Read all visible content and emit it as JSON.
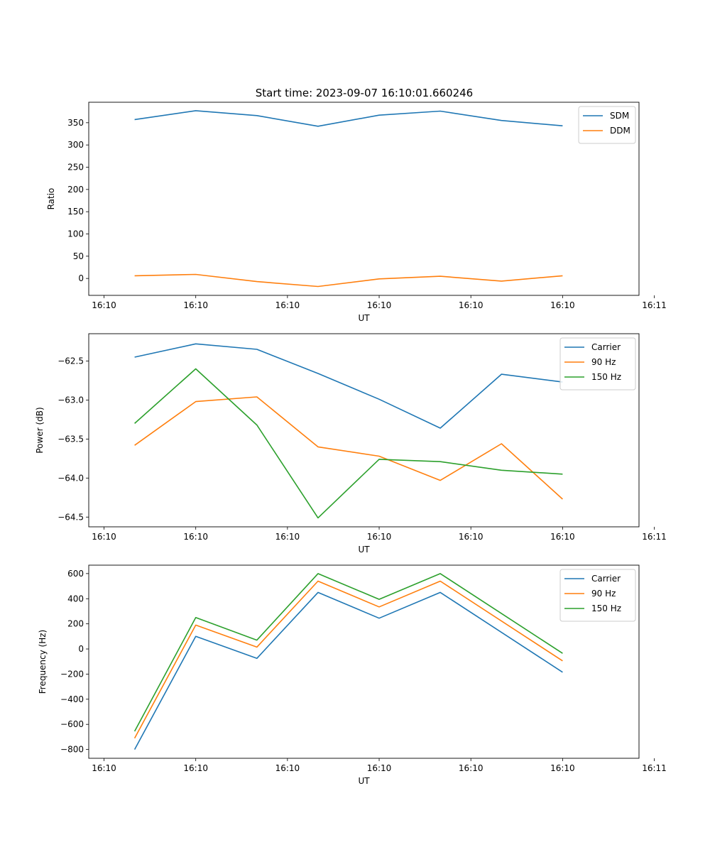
{
  "figure": {
    "title": "Start time: 2023-09-07 16:10:01.660246"
  },
  "colors": {
    "blue": "#1f77b4",
    "orange": "#ff7f0e",
    "green": "#2ca02c"
  },
  "chart_data": [
    {
      "type": "line",
      "title": "Start time: 2023-09-07 16:10:01.660246",
      "xlabel": "UT",
      "ylabel": "Ratio",
      "x": [
        1,
        2,
        3,
        4,
        5,
        6,
        7,
        8
      ],
      "xlim": [
        0.25,
        9.25
      ],
      "xticks": [
        0.5,
        2,
        3.5,
        5,
        6.5,
        8,
        9.5
      ],
      "xtick_labels": [
        "16:10",
        "16:10",
        "16:10",
        "16:10",
        "16:10",
        "16:10",
        "16:11"
      ],
      "ylim": [
        -38,
        396
      ],
      "yticks": [
        0,
        50,
        100,
        150,
        200,
        250,
        300,
        350
      ],
      "ytick_labels": [
        "0",
        "50",
        "100",
        "150",
        "200",
        "250",
        "300",
        "350"
      ],
      "legend_position": "top-right",
      "series": [
        {
          "name": "SDM",
          "color": "blue",
          "values": [
            357,
            377,
            366,
            342,
            367,
            376,
            355,
            343
          ]
        },
        {
          "name": "DDM",
          "color": "orange",
          "values": [
            6,
            9,
            -7,
            -18,
            -1,
            5,
            -6,
            6
          ]
        }
      ]
    },
    {
      "type": "line",
      "title": "",
      "xlabel": "UT",
      "ylabel": "Power (dB)",
      "x": [
        1,
        2,
        3,
        4,
        5,
        6,
        7,
        8
      ],
      "xlim": [
        0.25,
        9.25
      ],
      "xticks": [
        0.5,
        2,
        3.5,
        5,
        6.5,
        8,
        9.5
      ],
      "xtick_labels": [
        "16:10",
        "16:10",
        "16:10",
        "16:10",
        "16:10",
        "16:10",
        "16:11"
      ],
      "ylim": [
        -64.625,
        -62.15
      ],
      "yticks": [
        -62.5,
        -63.0,
        -63.5,
        -64.0,
        -64.5
      ],
      "ytick_labels": [
        "−62.5",
        "−63.0",
        "−63.5",
        "−64.0",
        "−64.5"
      ],
      "legend_position": "top-right",
      "series": [
        {
          "name": "Carrier",
          "color": "blue",
          "values": [
            -62.45,
            -62.28,
            -62.35,
            -62.66,
            -62.99,
            -63.36,
            -62.67,
            -62.77
          ]
        },
        {
          "name": "90 Hz",
          "color": "orange",
          "values": [
            -63.58,
            -63.02,
            -62.96,
            -63.6,
            -63.72,
            -64.03,
            -63.56,
            -64.27
          ]
        },
        {
          "name": "150 Hz",
          "color": "green",
          "values": [
            -63.3,
            -62.6,
            -63.32,
            -64.51,
            -63.76,
            -63.79,
            -63.9,
            -63.95
          ]
        }
      ]
    },
    {
      "type": "line",
      "title": "",
      "xlabel": "UT",
      "ylabel": "Frequency (Hz)",
      "x": [
        1,
        2,
        3,
        4,
        5,
        6,
        7,
        8
      ],
      "xlim": [
        0.25,
        9.25
      ],
      "xticks": [
        0.5,
        2,
        3.5,
        5,
        6.5,
        8,
        9.5
      ],
      "xtick_labels": [
        "16:10",
        "16:10",
        "16:10",
        "16:10",
        "16:10",
        "16:10",
        "16:11"
      ],
      "ylim": [
        -870,
        667
      ],
      "yticks": [
        -800,
        -600,
        -400,
        -200,
        0,
        200,
        400,
        600
      ],
      "ytick_labels": [
        "−800",
        "−600",
        "−400",
        "−200",
        "0",
        "200",
        "400",
        "600"
      ],
      "legend_position": "top-right",
      "series": [
        {
          "name": "Carrier",
          "color": "blue",
          "values": [
            -800,
            100,
            -75,
            450,
            245,
            450,
            null,
            -185
          ]
        },
        {
          "name": "90 Hz",
          "color": "orange",
          "values": [
            -710,
            190,
            15,
            540,
            335,
            540,
            null,
            -95
          ]
        },
        {
          "name": "150 Hz",
          "color": "green",
          "values": [
            -655,
            250,
            70,
            600,
            395,
            600,
            null,
            -35
          ]
        }
      ]
    }
  ]
}
